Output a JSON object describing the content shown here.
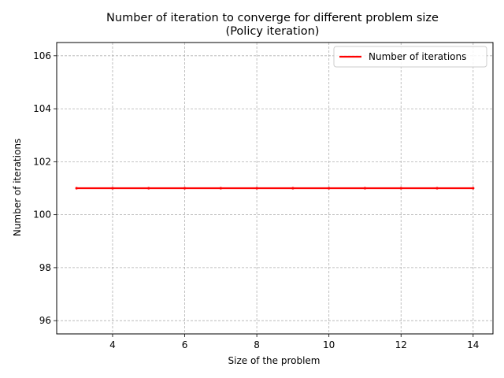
{
  "chart_data": {
    "type": "line",
    "title": "Number of iteration to converge for different problem size",
    "subtitle": "(Policy iteration)",
    "xlabel": "Size of the problem",
    "ylabel": "Number of iterations",
    "xlim": [
      2.45,
      14.55
    ],
    "ylim": [
      95.5,
      106.5
    ],
    "xticks": [
      4,
      6,
      8,
      10,
      12,
      14
    ],
    "yticks": [
      96,
      98,
      100,
      102,
      104,
      106
    ],
    "grid": true,
    "legend_position": "top-right",
    "series": [
      {
        "name": "Number of iterations",
        "color": "#ff0000",
        "x": [
          3,
          4,
          5,
          6,
          7,
          8,
          9,
          10,
          11,
          12,
          13,
          14
        ],
        "y": [
          101,
          101,
          101,
          101,
          101,
          101,
          101,
          101,
          101,
          101,
          101,
          101
        ]
      }
    ]
  }
}
